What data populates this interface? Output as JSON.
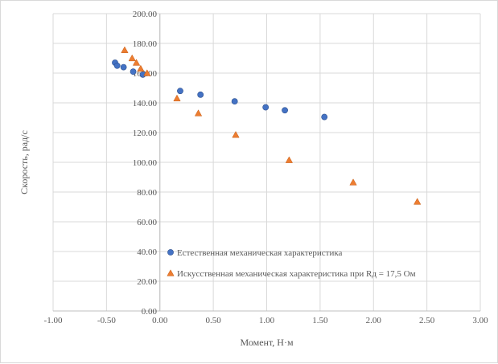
{
  "chart_data": {
    "type": "scatter",
    "title": "",
    "xlabel": "Момент, Н·м",
    "ylabel": "Скорость, рад/с",
    "xlim": [
      -1.0,
      3.0
    ],
    "ylim": [
      0.0,
      200.0
    ],
    "x_step": 0.5,
    "y_step": 20,
    "x_ticks": [
      "-1.00",
      "-0.50",
      "0.00",
      "0.50",
      "1.00",
      "1.50",
      "2.00",
      "2.50",
      "3.00"
    ],
    "y_ticks": [
      "0.00",
      "20.00",
      "40.00",
      "60.00",
      "80.00",
      "100.00",
      "120.00",
      "140.00",
      "160.00",
      "180.00",
      "200.00"
    ],
    "grid": true,
    "legend_position": "bottom-inside",
    "series": [
      {
        "name": "Естественная механическая характеристика",
        "marker": "circle",
        "color": "#4472c4",
        "points": [
          [
            -0.42,
            167.0
          ],
          [
            -0.4,
            165.0
          ],
          [
            -0.34,
            164.0
          ],
          [
            -0.25,
            161.0
          ],
          [
            -0.16,
            159.0
          ],
          [
            0.19,
            148.0
          ],
          [
            0.38,
            145.5
          ],
          [
            0.7,
            141.0
          ],
          [
            0.99,
            137.0
          ],
          [
            1.17,
            135.0
          ],
          [
            1.54,
            130.5
          ]
        ]
      },
      {
        "name": "Искусственная механическая характеристика при Rд = 17,5 Ом",
        "marker": "triangle",
        "color": "#ed7d31",
        "points": [
          [
            -0.33,
            175.5
          ],
          [
            -0.26,
            170.0
          ],
          [
            -0.22,
            167.0
          ],
          [
            -0.18,
            163.0
          ],
          [
            -0.12,
            160.0
          ],
          [
            0.16,
            143.0
          ],
          [
            0.36,
            133.0
          ],
          [
            0.71,
            118.5
          ],
          [
            1.21,
            101.5
          ],
          [
            1.81,
            86.5
          ],
          [
            2.41,
            73.5
          ]
        ]
      }
    ]
  }
}
